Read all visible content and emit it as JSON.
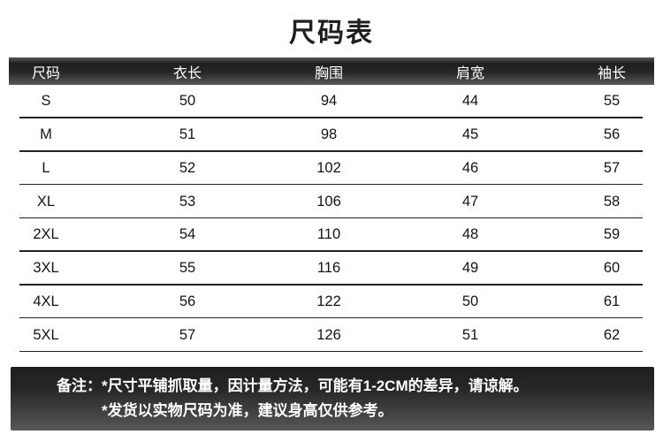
{
  "title": "尺码表",
  "table": {
    "headers": [
      "尺码",
      "衣长",
      "胸围",
      "肩宽",
      "袖长"
    ],
    "rows": [
      [
        "S",
        "50",
        "94",
        "44",
        "55"
      ],
      [
        "M",
        "51",
        "98",
        "45",
        "56"
      ],
      [
        "L",
        "52",
        "102",
        "46",
        "57"
      ],
      [
        "XL",
        "53",
        "106",
        "47",
        "58"
      ],
      [
        "2XL",
        "54",
        "110",
        "48",
        "59"
      ],
      [
        "3XL",
        "55",
        "116",
        "49",
        "60"
      ],
      [
        "4XL",
        "56",
        "122",
        "50",
        "61"
      ],
      [
        "5XL",
        "57",
        "126",
        "51",
        "62"
      ]
    ]
  },
  "notes": {
    "label": "备注：",
    "lines": [
      "*尺寸平铺抓取量，因计量方法，可能有1-2CM的差异，请谅解。",
      "*发货以实物尺码为准，建议身高仅供参考。"
    ]
  },
  "colors": {
    "header_bar_dark": "#1f1f1f",
    "header_bar_light": "#5a5a5a",
    "row_divider": "#232323",
    "header_text": "#ffffff",
    "body_text": "#141414"
  }
}
